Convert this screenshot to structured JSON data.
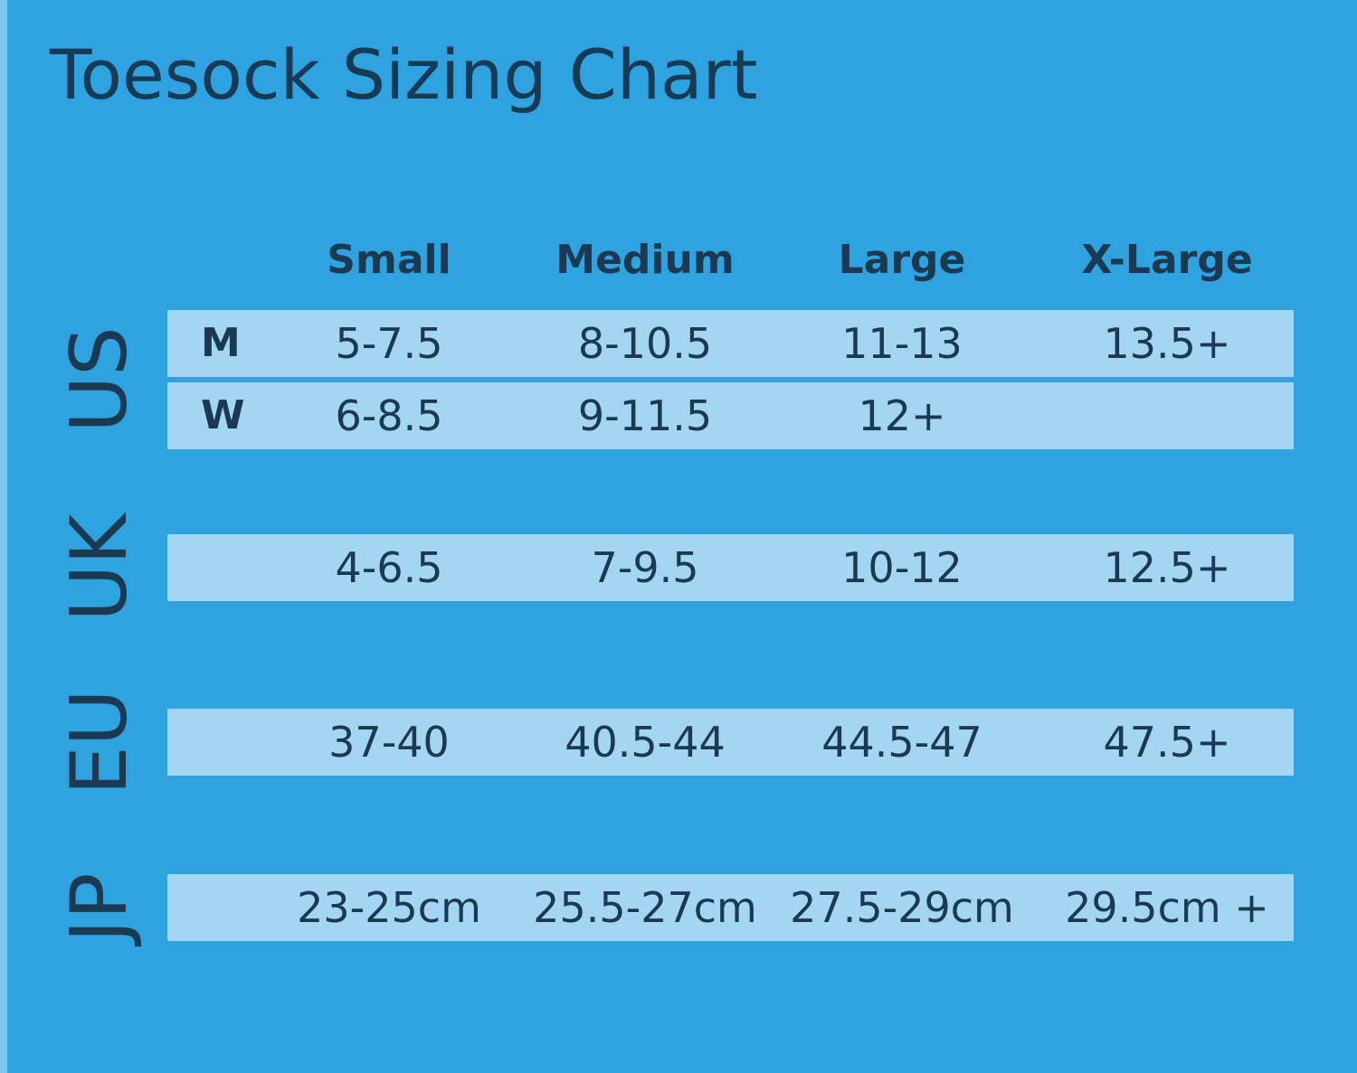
{
  "title": "Toesock Sizing Chart",
  "columns": [
    "Small",
    "Medium",
    "Large",
    "X-Large"
  ],
  "regions": [
    {
      "label": "US",
      "rows": [
        {
          "label": "M",
          "values": [
            "5-7.5",
            "8-10.5",
            "11-13",
            "13.5+"
          ]
        },
        {
          "label": "W",
          "values": [
            "6-8.5",
            "9-11.5",
            "12+"
          ]
        }
      ]
    },
    {
      "label": "UK",
      "rows": [
        {
          "values": [
            "4-6.5",
            "7-9.5",
            "10-12",
            "12.5+"
          ]
        }
      ]
    },
    {
      "label": "EU",
      "rows": [
        {
          "values": [
            "37-40",
            "40.5-44",
            "44.5-47",
            "47.5+"
          ]
        }
      ]
    },
    {
      "label": "JP",
      "rows": [
        {
          "values": [
            "23-25cm",
            "25.5-27cm",
            "27.5-29cm",
            "29.5cm +"
          ]
        }
      ]
    }
  ]
}
